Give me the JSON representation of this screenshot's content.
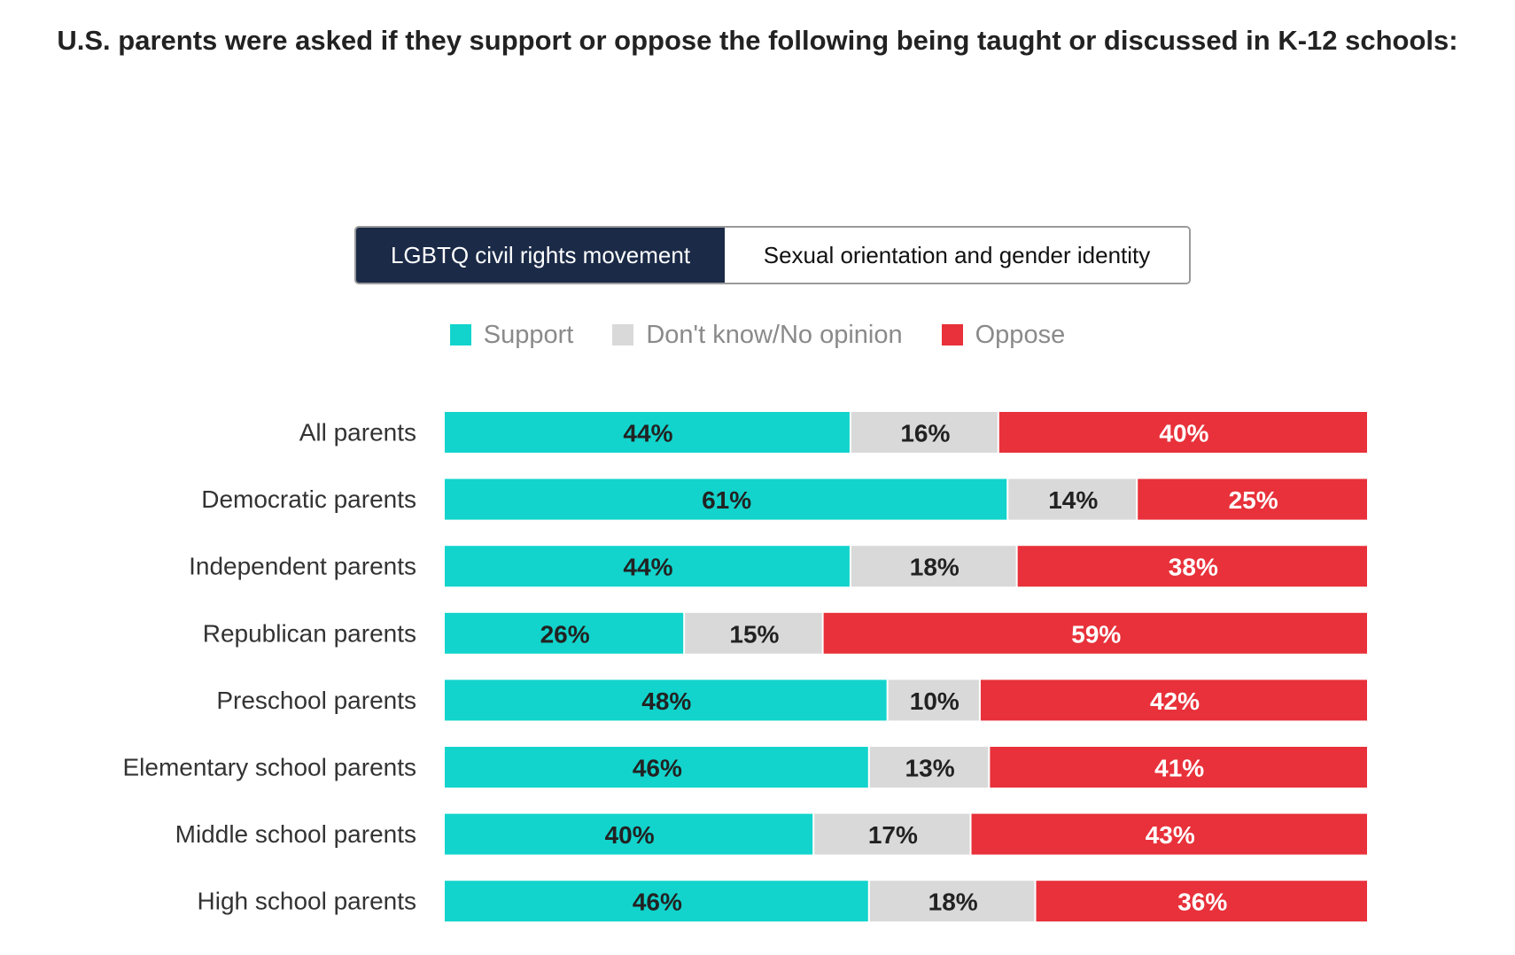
{
  "title": "U.S. parents were asked if they support or oppose the following being taught or discussed in K-12 schools:",
  "toggle": {
    "active_label": "LGBTQ civil rights movement",
    "inactive_label": "Sexual orientation and gender identity"
  },
  "colors": {
    "support": "#12d4cc",
    "dont_know": "#d9d9d9",
    "oppose": "#e8313a",
    "toggle_active_bg": "#1a2a47"
  },
  "chart_data": {
    "type": "bar",
    "orientation": "horizontal",
    "stacked": true,
    "xlim": [
      0,
      100
    ],
    "legend": "top-center",
    "grid": false,
    "categories": [
      "All parents",
      "Democratic parents",
      "Independent parents",
      "Republican parents",
      "Preschool parents",
      "Elementary school parents",
      "Middle school parents",
      "High school parents"
    ],
    "series": [
      {
        "name": "Support",
        "color": "#12d4cc",
        "label_color": "#222222",
        "values": [
          44,
          61,
          44,
          26,
          48,
          46,
          40,
          46
        ]
      },
      {
        "name": "Don't know/No opinion",
        "color": "#d9d9d9",
        "label_color": "#222222",
        "values": [
          16,
          14,
          18,
          15,
          10,
          13,
          17,
          18
        ]
      },
      {
        "name": "Oppose",
        "color": "#e8313a",
        "label_color": "#ffffff",
        "values": [
          40,
          25,
          38,
          59,
          42,
          41,
          43,
          36
        ]
      }
    ]
  }
}
